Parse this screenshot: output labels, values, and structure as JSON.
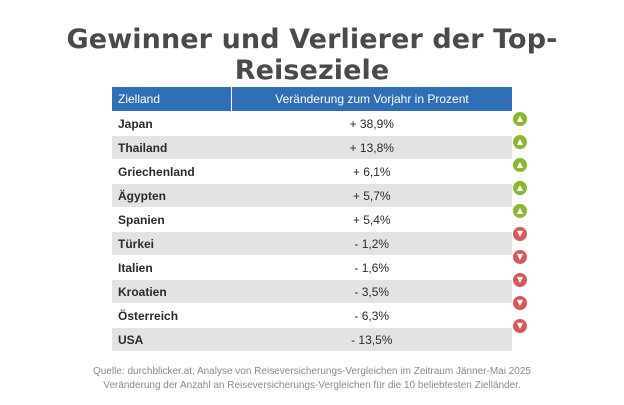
{
  "chart_data": {
    "type": "table",
    "title": "Gewinner und Verlierer der Top-Reiseziele",
    "columns": [
      "Zielland",
      "Veränderung zum Vorjahr in Prozent"
    ],
    "rows": [
      {
        "country": "Japan",
        "change_label": "+ 38,9%",
        "value": 38.9
      },
      {
        "country": "Thailand",
        "change_label": "+ 13,8%",
        "value": 13.8
      },
      {
        "country": "Griechenland",
        "change_label": "+ 6,1%",
        "value": 6.1
      },
      {
        "country": "Ägypten",
        "change_label": "+ 5,7%",
        "value": 5.7
      },
      {
        "country": "Spanien",
        "change_label": "+ 5,4%",
        "value": 5.4
      },
      {
        "country": "Türkei",
        "change_label": "- 1,2%",
        "value": -1.2
      },
      {
        "country": "Italien",
        "change_label": "- 1,6%",
        "value": -1.6
      },
      {
        "country": "Kroatien",
        "change_label": "- 3,5%",
        "value": -3.5
      },
      {
        "country": "Österreich",
        "change_label": "- 6,3%",
        "value": -6.3
      },
      {
        "country": "USA",
        "change_label": "- 13,5%",
        "value": -13.5
      }
    ],
    "footnotes": [
      "Quelle: durchblicker.at, Analyse von Reiseversicherungs-Vergleichen im Zeitraum Jänner-Mai 2025",
      "Veränderung der Anzahl an Reiseversicherungs-Vergleichen für die 10 beliebtesten Zielländer."
    ]
  },
  "colors": {
    "header_bg": "#2f6fb7",
    "up_icon": "#8ab833",
    "down_icon": "#d75a5a",
    "stripe": "#e3e3e3"
  },
  "icons": {
    "up": "chevron-up-icon",
    "down": "chevron-down-icon"
  }
}
